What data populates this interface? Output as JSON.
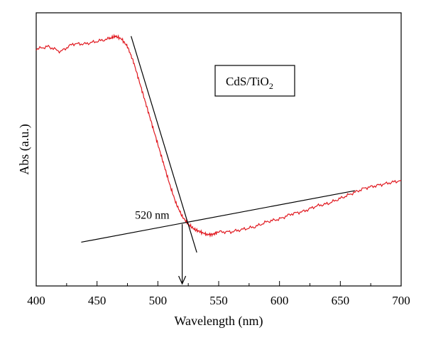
{
  "chart_data": {
    "type": "line",
    "title": "",
    "xlabel": "Wavelength (nm)",
    "ylabel": "Abs (a.u.)",
    "xlim": [
      400,
      700
    ],
    "ylim": [
      0,
      1
    ],
    "x_ticks": [
      "400",
      "450",
      "500",
      "550",
      "600",
      "650",
      "700"
    ],
    "y_ticks_labeled": false,
    "legend": {
      "label": "CdS/TiO",
      "subscript": "2",
      "placement": "top-center"
    },
    "series": [
      {
        "color": "#e0181f",
        "x": [
          400,
          410,
          420,
          430,
          440,
          450,
          460,
          465,
          470,
          475,
          480,
          485,
          490,
          495,
          500,
          505,
          510,
          515,
          520,
          525,
          530,
          535,
          540,
          545,
          550,
          560,
          570,
          580,
          590,
          600,
          610,
          620,
          630,
          640,
          650,
          660,
          670,
          680,
          690,
          700
        ],
        "y": [
          0.92,
          0.93,
          0.91,
          0.94,
          0.94,
          0.95,
          0.96,
          0.97,
          0.96,
          0.93,
          0.87,
          0.79,
          0.71,
          0.63,
          0.55,
          0.47,
          0.39,
          0.32,
          0.27,
          0.24,
          0.22,
          0.21,
          0.2,
          0.2,
          0.21,
          0.21,
          0.22,
          0.23,
          0.25,
          0.26,
          0.28,
          0.29,
          0.31,
          0.32,
          0.34,
          0.36,
          0.38,
          0.39,
          0.4,
          0.41
        ]
      }
    ],
    "tangent_lines": [
      {
        "x": [
          478,
          532
        ],
        "y": [
          0.97,
          0.13
        ]
      },
      {
        "x": [
          437,
          662
        ],
        "y": [
          0.17,
          0.37
        ]
      }
    ],
    "annotations": [
      {
        "text": "520 nm",
        "x": 520,
        "y": 0.25
      }
    ],
    "arrow": {
      "x": 520,
      "y_from": 0.24,
      "y_to": 0.0
    },
    "colors": {
      "series": "#e0181f",
      "axes": "#000000",
      "fit_lines": "#000000"
    }
  }
}
